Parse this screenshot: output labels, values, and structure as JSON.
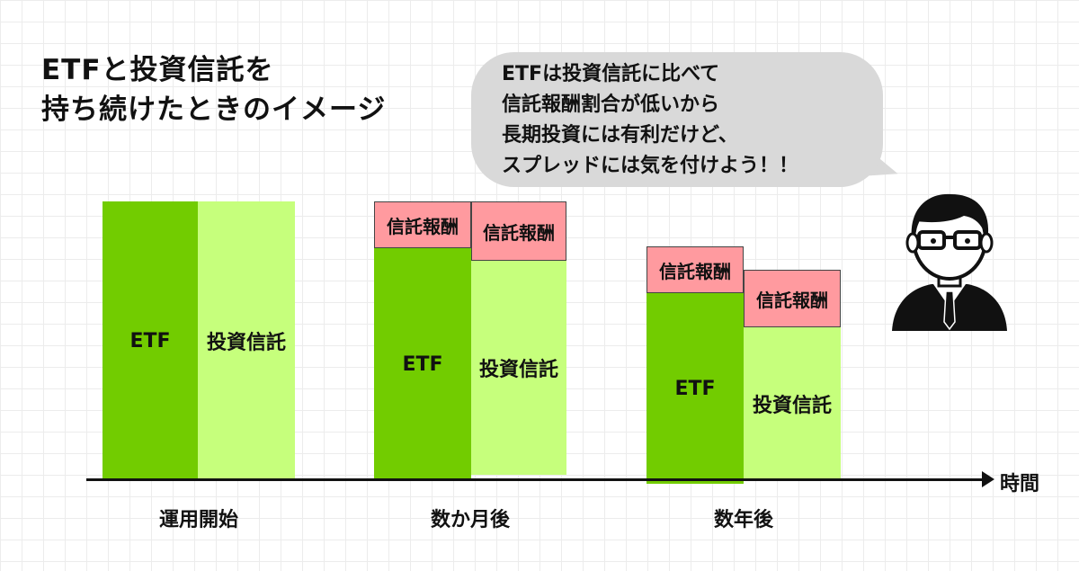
{
  "title": {
    "line1": "ETFと投資信託を",
    "line2": "持ち続けたときのイメージ"
  },
  "speech": {
    "line1": "ETFは投資信託に比べて",
    "line2": "信託報酬割合が低いから",
    "line3": "長期投資には有利だけど、",
    "line4": "スプレッドには気を付けよう！！"
  },
  "bars": {
    "etf_label": "ETF",
    "fund_label": "投資信託",
    "fee_label": "信託報酬"
  },
  "axis": {
    "label": "時間",
    "periods": [
      "運用開始",
      "数か月後",
      "数年後"
    ]
  },
  "colors": {
    "etf": "#72cc00",
    "fund": "#c6ff7c",
    "fee": "#ff9a9f",
    "bubble": "#d9d9d9"
  },
  "icons": {
    "person": "businessman-with-glasses-icon"
  }
}
